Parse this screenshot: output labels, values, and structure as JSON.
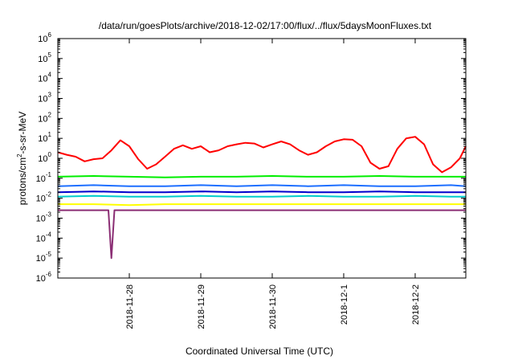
{
  "chart_data": {
    "type": "line",
    "title": "/data/run/goesPlots/archive/2018-12-02/17:00/flux/../flux/5daysMoonFluxes.txt",
    "xlabel": "Coordinated Universal Time (UTC)",
    "ylabel_main": "protons/cm",
    "ylabel_sup": "2",
    "ylabel_tail": "-s-sr-MeV",
    "y_scale": "log",
    "ylim": [
      1e-06,
      1000000.0
    ],
    "y_ticks": [
      {
        "base": "10",
        "exp": "-6"
      },
      {
        "base": "10",
        "exp": "-5"
      },
      {
        "base": "10",
        "exp": "-4"
      },
      {
        "base": "10",
        "exp": "-3"
      },
      {
        "base": "10",
        "exp": "-2"
      },
      {
        "base": "10",
        "exp": "-1"
      },
      {
        "base": "10",
        "exp": "0"
      },
      {
        "base": "10",
        "exp": "1"
      },
      {
        "base": "10",
        "exp": "2"
      },
      {
        "base": "10",
        "exp": "3"
      },
      {
        "base": "10",
        "exp": "4"
      },
      {
        "base": "10",
        "exp": "5"
      },
      {
        "base": "10",
        "exp": "6"
      }
    ],
    "xlim": [
      "2018-11-27T00:00",
      "2018-12-02T17:00"
    ],
    "x_ticks": [
      "2018-11-28",
      "2018-11-29",
      "2018-11-30",
      "2018-12-1",
      "2018-12-2"
    ],
    "grid": false,
    "legend": "none",
    "series": [
      {
        "color": "#ff0000",
        "x": [
          "2018-11-27T00:00",
          "2018-11-27T03:00",
          "2018-11-27T06:00",
          "2018-11-27T09:00",
          "2018-11-27T12:00",
          "2018-11-27T15:00",
          "2018-11-27T18:00",
          "2018-11-27T21:00",
          "2018-11-28T00:00",
          "2018-11-28T03:00",
          "2018-11-28T06:00",
          "2018-11-28T09:00",
          "2018-11-28T12:00",
          "2018-11-28T15:00",
          "2018-11-28T18:00",
          "2018-11-28T21:00",
          "2018-11-29T00:00",
          "2018-11-29T03:00",
          "2018-11-29T06:00",
          "2018-11-29T09:00",
          "2018-11-29T12:00",
          "2018-11-29T15:00",
          "2018-11-29T18:00",
          "2018-11-29T21:00",
          "2018-11-30T00:00",
          "2018-11-30T03:00",
          "2018-11-30T06:00",
          "2018-11-30T09:00",
          "2018-11-30T12:00",
          "2018-11-30T15:00",
          "2018-11-30T18:00",
          "2018-11-30T21:00",
          "2018-12-01T00:00",
          "2018-12-01T03:00",
          "2018-12-01T06:00",
          "2018-12-01T09:00",
          "2018-12-01T12:00",
          "2018-12-01T15:00",
          "2018-12-01T18:00",
          "2018-12-01T21:00",
          "2018-12-02T00:00",
          "2018-12-02T03:00",
          "2018-12-02T06:00",
          "2018-12-02T09:00",
          "2018-12-02T12:00",
          "2018-12-02T15:00",
          "2018-12-02T17:00"
        ],
        "y": [
          2.0,
          1.5,
          1.2,
          0.7,
          0.9,
          1.0,
          2.5,
          8.0,
          4.0,
          0.9,
          0.3,
          0.5,
          1.2,
          3.0,
          4.5,
          3.0,
          4.0,
          2.0,
          2.5,
          4.0,
          5.0,
          6.0,
          5.5,
          3.5,
          5.0,
          7.0,
          5.0,
          2.5,
          1.5,
          2.0,
          4.0,
          7.0,
          9.0,
          8.5,
          4.0,
          0.6,
          0.3,
          0.4,
          3.0,
          10.0,
          12.0,
          5.0,
          0.5,
          0.2,
          0.35,
          1.0,
          4.0
        ]
      },
      {
        "color": "#00ee00",
        "x": [
          "2018-11-27T00:00",
          "2018-11-27T12:00",
          "2018-11-28T00:00",
          "2018-11-28T12:00",
          "2018-11-29T00:00",
          "2018-11-29T12:00",
          "2018-11-30T00:00",
          "2018-11-30T12:00",
          "2018-12-01T00:00",
          "2018-12-01T12:00",
          "2018-12-02T00:00",
          "2018-12-02T12:00",
          "2018-12-02T17:00"
        ],
        "y": [
          0.12,
          0.13,
          0.12,
          0.11,
          0.12,
          0.12,
          0.13,
          0.12,
          0.12,
          0.13,
          0.12,
          0.12,
          0.12
        ]
      },
      {
        "color": "#1e6fff",
        "x": [
          "2018-11-27T00:00",
          "2018-11-27T12:00",
          "2018-11-28T00:00",
          "2018-11-28T12:00",
          "2018-11-29T00:00",
          "2018-11-29T12:00",
          "2018-11-30T00:00",
          "2018-11-30T12:00",
          "2018-12-01T00:00",
          "2018-12-01T12:00",
          "2018-12-02T00:00",
          "2018-12-02T12:00",
          "2018-12-02T17:00"
        ],
        "y": [
          0.04,
          0.045,
          0.04,
          0.04,
          0.045,
          0.04,
          0.045,
          0.04,
          0.045,
          0.04,
          0.04,
          0.045,
          0.04
        ]
      },
      {
        "color": "#0000cc",
        "x": [
          "2018-11-27T00:00",
          "2018-11-27T12:00",
          "2018-11-28T00:00",
          "2018-11-28T12:00",
          "2018-11-29T00:00",
          "2018-11-29T12:00",
          "2018-11-30T00:00",
          "2018-11-30T12:00",
          "2018-12-01T00:00",
          "2018-12-01T12:00",
          "2018-12-02T00:00",
          "2018-12-02T12:00",
          "2018-12-02T17:00"
        ],
        "y": [
          0.02,
          0.022,
          0.02,
          0.02,
          0.022,
          0.02,
          0.022,
          0.02,
          0.02,
          0.022,
          0.02,
          0.02,
          0.02
        ]
      },
      {
        "color": "#00cccc",
        "x": [
          "2018-11-27T00:00",
          "2018-11-27T12:00",
          "2018-11-28T00:00",
          "2018-11-28T12:00",
          "2018-11-29T00:00",
          "2018-11-29T12:00",
          "2018-11-30T00:00",
          "2018-11-30T12:00",
          "2018-12-01T00:00",
          "2018-12-01T12:00",
          "2018-12-02T00:00",
          "2018-12-02T12:00",
          "2018-12-02T17:00"
        ],
        "y": [
          0.012,
          0.013,
          0.012,
          0.012,
          0.013,
          0.012,
          0.012,
          0.013,
          0.012,
          0.012,
          0.013,
          0.012,
          0.012
        ]
      },
      {
        "color": "#ffff00",
        "x": [
          "2018-11-27T00:00",
          "2018-11-27T12:00",
          "2018-11-28T00:00",
          "2018-11-28T12:00",
          "2018-11-29T00:00",
          "2018-11-29T12:00",
          "2018-11-30T00:00",
          "2018-11-30T12:00",
          "2018-12-01T00:00",
          "2018-12-01T12:00",
          "2018-12-02T00:00",
          "2018-12-02T12:00",
          "2018-12-02T17:00"
        ],
        "y": [
          0.005,
          0.005,
          0.0045,
          0.005,
          0.005,
          0.005,
          0.005,
          0.005,
          0.005,
          0.005,
          0.005,
          0.005,
          0.005
        ]
      },
      {
        "color": "#8b2e74",
        "x": [
          "2018-11-27T00:00",
          "2018-11-27T12:00",
          "2018-11-27T17:00",
          "2018-11-27T18:00",
          "2018-11-27T19:00",
          "2018-11-28T00:00",
          "2018-11-28T12:00",
          "2018-11-29T00:00",
          "2018-11-29T12:00",
          "2018-11-30T00:00",
          "2018-11-30T12:00",
          "2018-12-01T00:00",
          "2018-12-01T12:00",
          "2018-12-02T00:00",
          "2018-12-02T12:00",
          "2018-12-02T17:00"
        ],
        "y": [
          0.0025,
          0.0025,
          0.0025,
          1e-05,
          0.0025,
          0.0025,
          0.0025,
          0.0025,
          0.0025,
          0.0025,
          0.0025,
          0.0025,
          0.0025,
          0.0025,
          0.0025,
          0.0025
        ]
      }
    ]
  }
}
